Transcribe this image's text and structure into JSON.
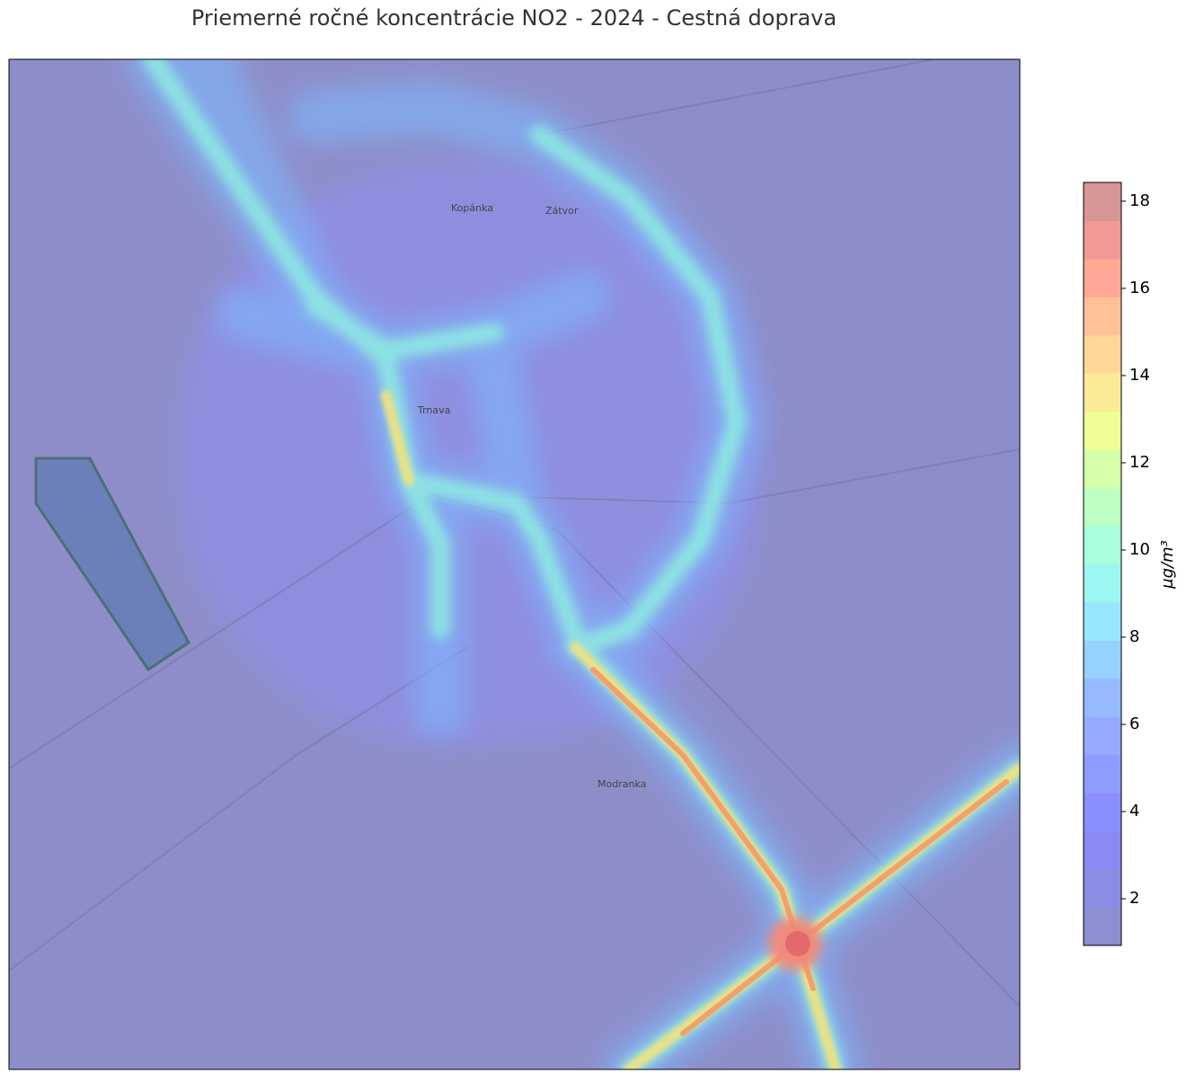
{
  "title": "Priemerné ročné koncentrácie NO2 - 2024 - Cestná doprava",
  "map": {
    "places": [
      "Trnava",
      "Kopánka",
      "Zátvor",
      "Modranka"
    ]
  },
  "colorbar": {
    "label": "μg/m³",
    "lim": [
      0.93,
      18.43
    ],
    "ticks": [
      2,
      4,
      6,
      8,
      10,
      12,
      14,
      16,
      18
    ]
  }
}
